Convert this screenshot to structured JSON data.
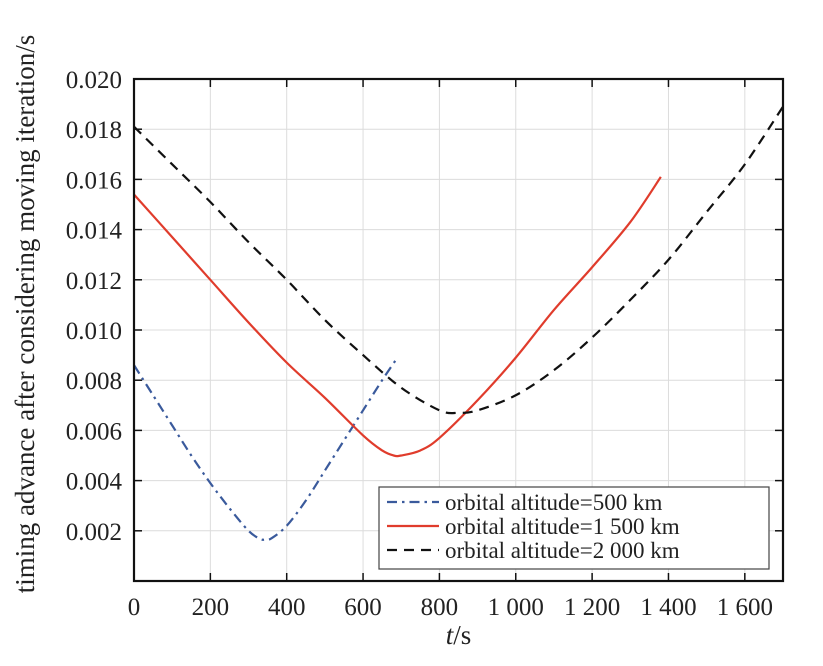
{
  "chart_data": {
    "type": "line",
    "title": "",
    "xlabel_italic": "t",
    "xlabel_unit": "/s",
    "ylabel": "timing advance after considering moving iteration/s",
    "xlim": [
      0,
      1700
    ],
    "ylim": [
      0,
      0.02
    ],
    "grid": true,
    "legend_position": "bottom-right",
    "x_ticks": [
      0,
      200,
      400,
      600,
      800,
      1000,
      1200,
      1400,
      1600
    ],
    "x_tick_labels": [
      "0",
      "200",
      "400",
      "600",
      "800",
      "1 000",
      "1 200",
      "1 400",
      "1 600"
    ],
    "y_ticks": [
      0.002,
      0.004,
      0.006,
      0.008,
      0.01,
      0.012,
      0.014,
      0.016,
      0.018,
      0.02
    ],
    "y_tick_labels": [
      "0.002",
      "0.004",
      "0.006",
      "0.008",
      "0.010",
      "0.012",
      "0.014",
      "0.016",
      "0.018",
      "0.020"
    ],
    "series": [
      {
        "name": "orbital altitude=500 km",
        "color": "#3a5a9c",
        "dash": "dashdot",
        "x": [
          0,
          50,
          100,
          150,
          200,
          250,
          300,
          330,
          345,
          360,
          400,
          450,
          500,
          550,
          600,
          650,
          690
        ],
        "y": [
          0.0086,
          0.0074,
          0.0062,
          0.005,
          0.0039,
          0.0029,
          0.002,
          0.00168,
          0.00165,
          0.0017,
          0.0022,
          0.0032,
          0.0044,
          0.0056,
          0.0068,
          0.008,
          0.0089
        ]
      },
      {
        "name": "orbital altitude=1 500 km",
        "color": "#e03c2c",
        "dash": "solid",
        "x": [
          0,
          100,
          200,
          300,
          400,
          500,
          600,
          650,
          680,
          700,
          750,
          800,
          900,
          1000,
          1100,
          1200,
          1300,
          1380
        ],
        "y": [
          0.0154,
          0.0137,
          0.012,
          0.0103,
          0.0087,
          0.0073,
          0.0058,
          0.0052,
          0.005,
          0.005,
          0.0052,
          0.0057,
          0.0072,
          0.0089,
          0.0108,
          0.0125,
          0.0143,
          0.0161
        ]
      },
      {
        "name": "orbital altitude=2 000 km",
        "color": "#111111",
        "dash": "dashed",
        "x": [
          0,
          100,
          200,
          300,
          400,
          500,
          600,
          700,
          800,
          850,
          900,
          1000,
          1100,
          1200,
          1300,
          1400,
          1500,
          1600,
          1700
        ],
        "y": [
          0.0181,
          0.0166,
          0.0151,
          0.0135,
          0.012,
          0.0104,
          0.009,
          0.0077,
          0.0068,
          0.0067,
          0.0068,
          0.0074,
          0.0084,
          0.0097,
          0.0112,
          0.0128,
          0.0147,
          0.0166,
          0.0189
        ]
      }
    ]
  }
}
